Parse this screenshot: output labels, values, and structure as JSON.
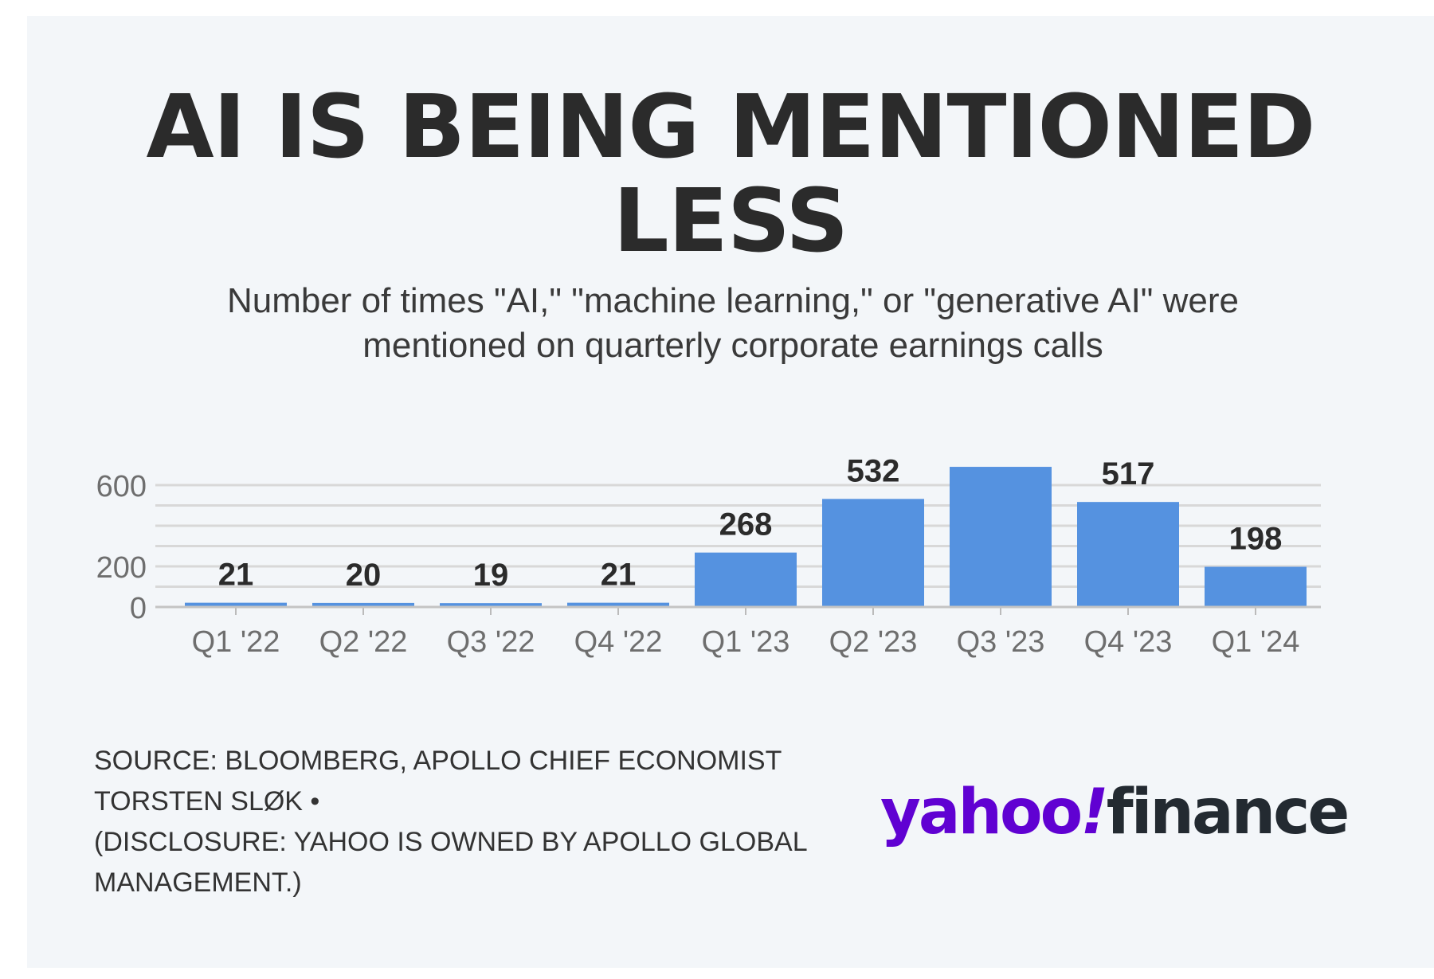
{
  "chart_data": {
    "type": "bar",
    "title_lines": [
      "AI IS BEING MENTIONED",
      "LESS"
    ],
    "subtitle_lines": [
      "Number of times \"AI,\" \"machine learning,\" or \"generative AI\" were",
      "mentioned on quarterly corporate earnings calls"
    ],
    "categories": [
      "Q1 '22",
      "Q2 '22",
      "Q3 '22",
      "Q4 '22",
      "Q1 '23",
      "Q2 '23",
      "Q3 '23",
      "Q4 '23",
      "Q1 '24"
    ],
    "values": [
      21,
      20,
      19,
      21,
      268,
      532,
      690,
      517,
      198
    ],
    "data_labels": [
      "21",
      "20",
      "19",
      "21",
      "268",
      "532",
      "",
      "517",
      "198"
    ],
    "yticks": [
      "0",
      "200",
      "600"
    ],
    "ylim": [
      0,
      700
    ],
    "grid": true,
    "bar_color": "#5592e0",
    "xlabel": "",
    "ylabel": ""
  },
  "source_lines": [
    "SOURCE: BLOOMBERG, APOLLO CHIEF ECONOMIST",
    "TORSTEN SLØK •",
    "(DISCLOSURE: YAHOO IS OWNED BY APOLLO GLOBAL",
    "MANAGEMENT.)"
  ],
  "logo": {
    "brand": "yahoo",
    "bang": "!",
    "product": "finance",
    "brand_color": "#6001d2",
    "product_color": "#232a31"
  }
}
